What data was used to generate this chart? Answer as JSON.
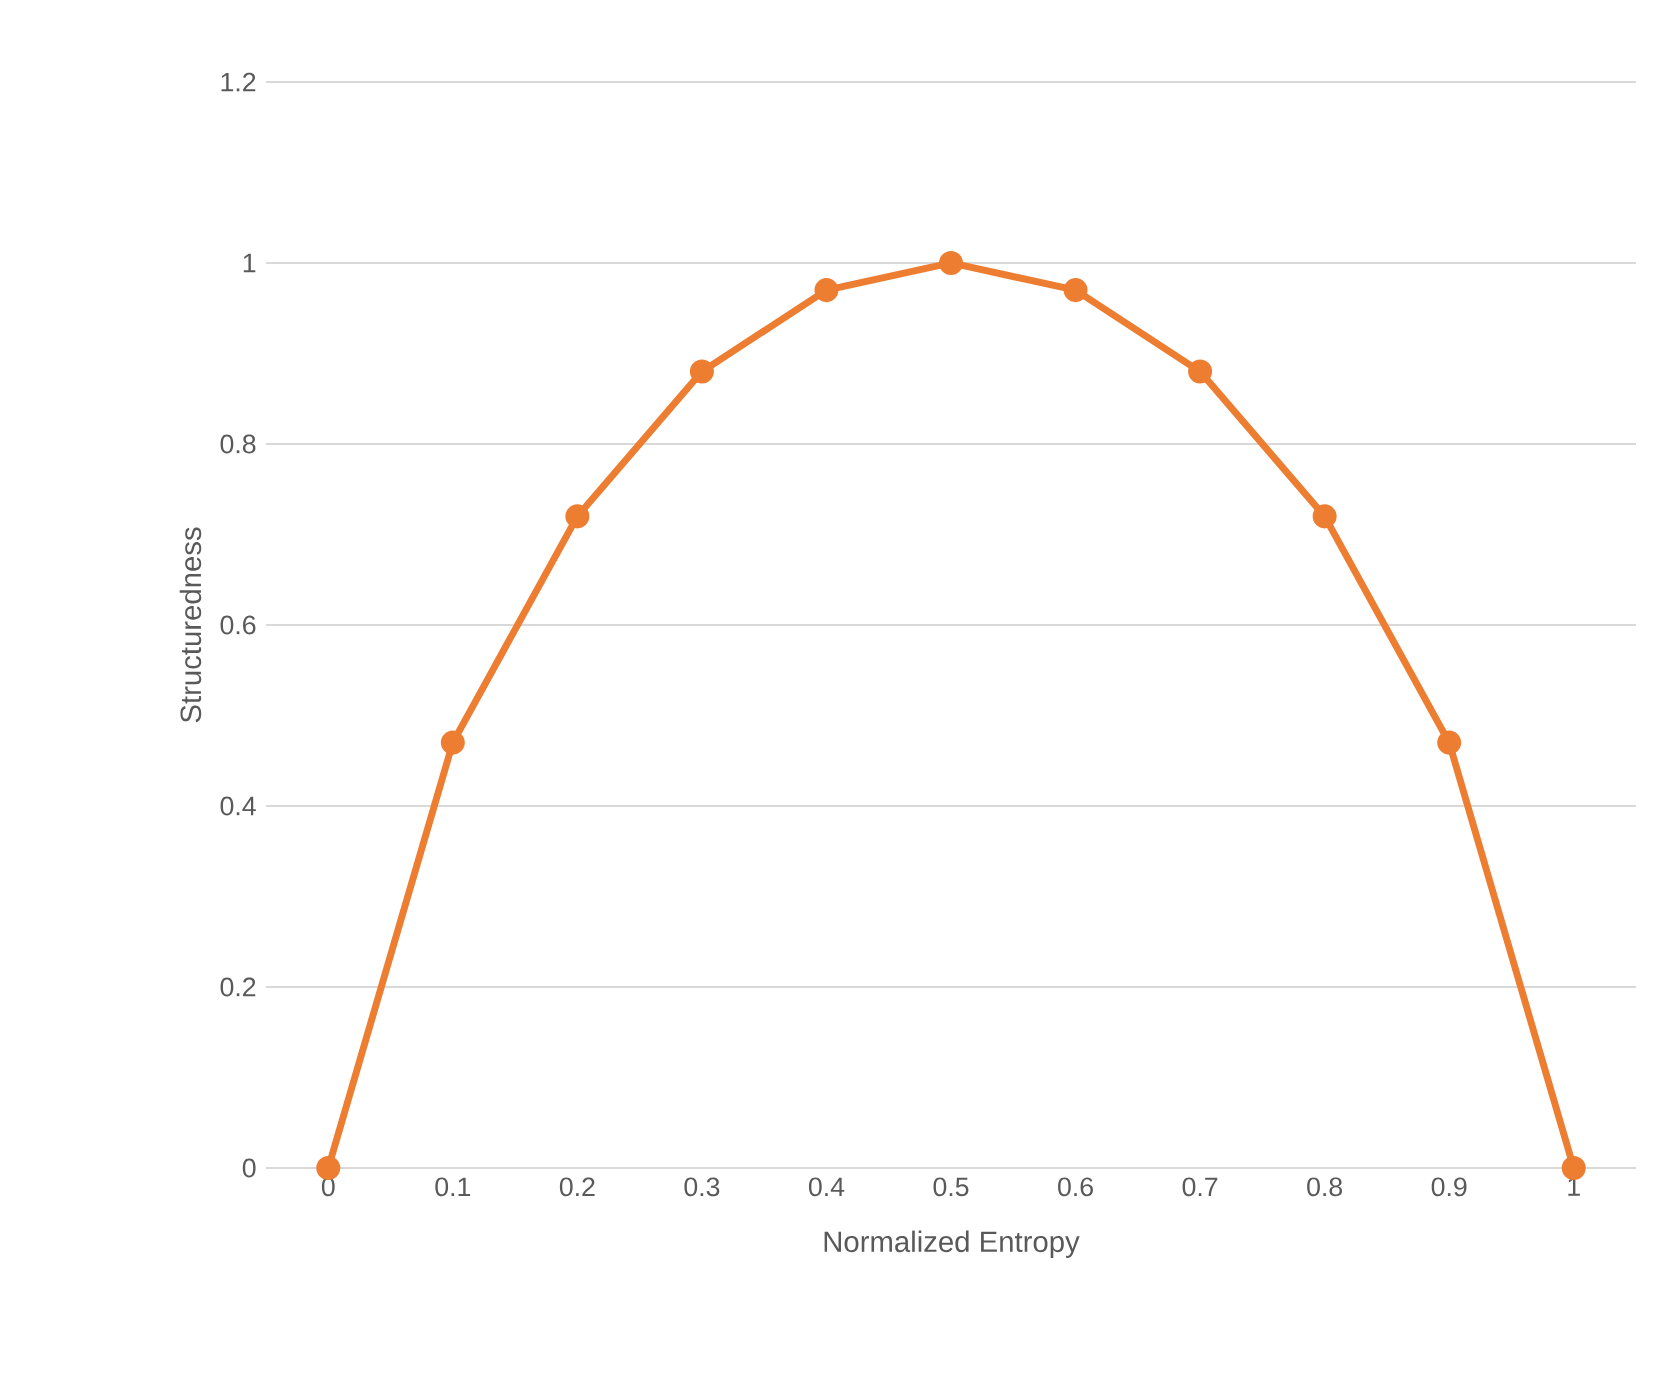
{
  "chart_data": {
    "type": "line",
    "xlabel": "Normalized Entropy",
    "ylabel": "Structuredness",
    "categories": [
      "0",
      "0.1",
      "0.2",
      "0.3",
      "0.4",
      "0.5",
      "0.6",
      "0.7",
      "0.8",
      "0.9",
      "1"
    ],
    "series": [
      {
        "color": "#ed7d31",
        "values": [
          0,
          0.47,
          0.72,
          0.88,
          0.97,
          1,
          0.97,
          0.88,
          0.72,
          0.47,
          0
        ]
      }
    ],
    "ylim": [
      0,
      1.2
    ],
    "yticks": [
      0,
      0.2,
      0.4,
      0.6,
      0.8,
      1,
      1.2
    ],
    "grid": "y",
    "marker": "circle"
  }
}
